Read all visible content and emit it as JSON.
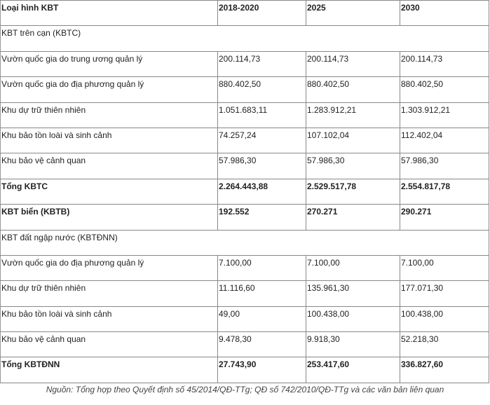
{
  "header": [
    "Loại hình KBT",
    "2018-2020",
    "2025",
    "2030"
  ],
  "rows": [
    {
      "type": "section",
      "label": "KBT trên cạn (KBTC)"
    },
    {
      "type": "data",
      "label": "Vườn quốc gia do trung ương quản lý",
      "values": [
        "200.114,73",
        "200.114,73",
        "200.114,73"
      ]
    },
    {
      "type": "data",
      "label": "Vườn quốc gia do địa phương quản lý",
      "values": [
        "880.402,50",
        "880.402,50",
        "880.402,50"
      ]
    },
    {
      "type": "data",
      "label": "Khu dự trữ thiên nhiên",
      "values": [
        "1.051.683,11",
        "1.283.912,21",
        "1.303.912,21"
      ]
    },
    {
      "type": "data",
      "label": "Khu bảo tồn loài và sinh cảnh",
      "values": [
        "74.257,24",
        "107.102,04",
        "112.402,04"
      ]
    },
    {
      "type": "data",
      "label": "Khu bảo vệ cảnh quan",
      "values": [
        "57.986,30",
        "57.986,30",
        "57.986,30"
      ]
    },
    {
      "type": "total",
      "label": "Tổng KBTC",
      "values": [
        "2.264.443,88",
        "2.529.517,78",
        "2.554.817,78"
      ]
    },
    {
      "type": "total",
      "label": "KBT biển (KBTB)",
      "values": [
        "192.552",
        "270.271",
        "290.271"
      ]
    },
    {
      "type": "section",
      "label": "KBT đất ngập nước (KBTĐNN)"
    },
    {
      "type": "data",
      "label": "Vườn quốc gia do địa phương quản lý",
      "values": [
        "7.100,00",
        "7.100,00",
        "7.100,00"
      ]
    },
    {
      "type": "data",
      "label": "Khu dự trữ thiên nhiên",
      "values": [
        "11.116,60",
        "135.961,30",
        "177.071,30"
      ]
    },
    {
      "type": "data",
      "label": "Khu bảo tồn loài và sinh cảnh",
      "values": [
        "49,00",
        "100.438,00",
        "100.438,00"
      ]
    },
    {
      "type": "data",
      "label": "Khu bảo vệ cảnh quan",
      "values": [
        "9.478,30",
        "9.918,30",
        "52.218,30"
      ]
    },
    {
      "type": "total",
      "label": "Tổng KBTĐNN",
      "values": [
        "27.743,90",
        "253.417,60",
        "336.827,60"
      ]
    }
  ],
  "caption": "Nguồn: Tổng hợp theo Quyết định số 45/2014/QĐ-TTg; QĐ số 742/2010/QĐ-TTg và các văn bản liên quan"
}
